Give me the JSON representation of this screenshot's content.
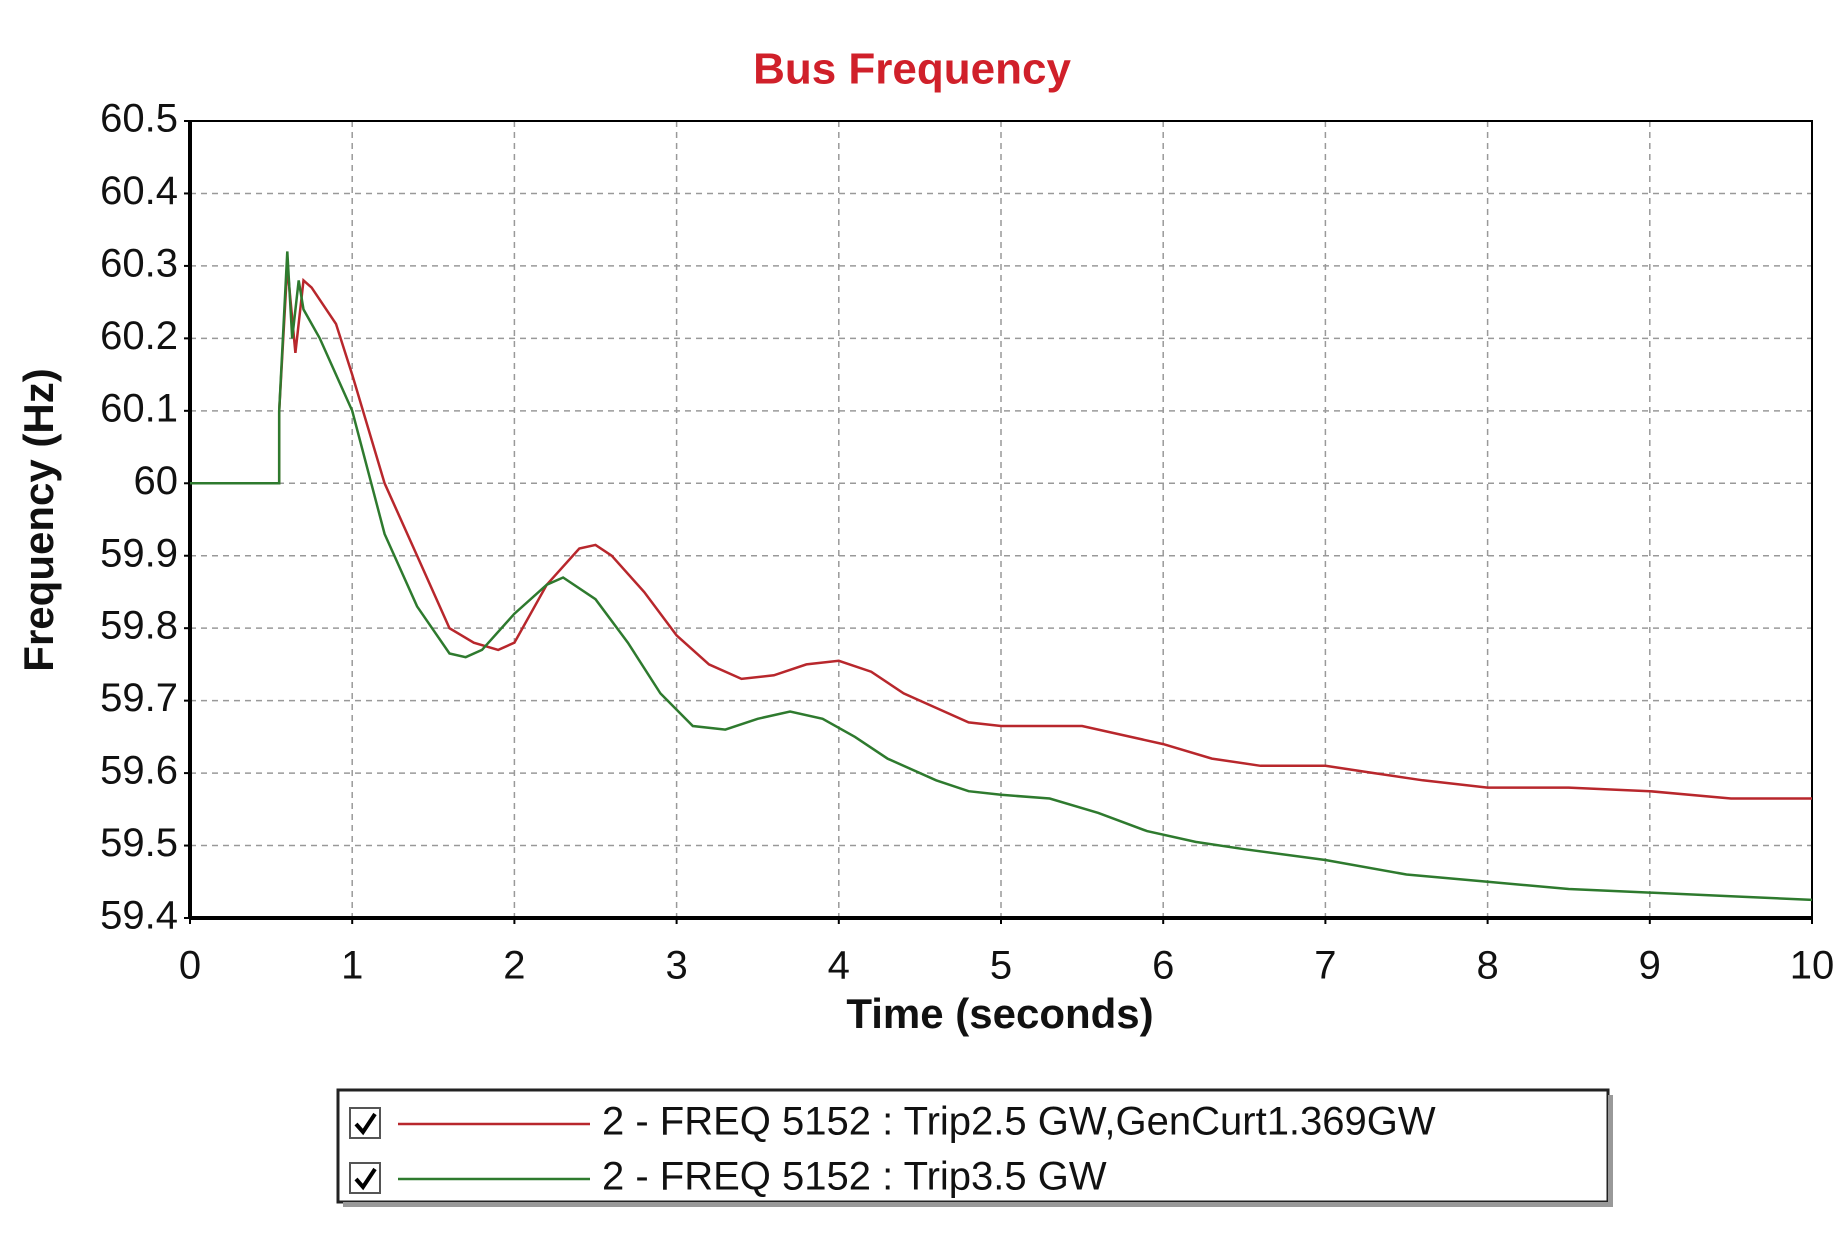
{
  "chart_data": {
    "type": "line",
    "title": "Bus Frequency",
    "x_label": "Time (seconds)",
    "y_label": "Frequency (Hz)",
    "xlim": [
      0,
      10
    ],
    "ylim": [
      59.4,
      60.5
    ],
    "xticks": [
      0,
      1,
      2,
      3,
      4,
      5,
      6,
      7,
      8,
      9,
      10
    ],
    "yticks": [
      59.4,
      59.5,
      59.6,
      59.7,
      59.8,
      59.9,
      60,
      60.1,
      60.2,
      60.3,
      60.4,
      60.5
    ],
    "grid": true,
    "legend": "bottom",
    "series": [
      {
        "name": "2 - FREQ 5152 : Trip2.5 GW,GenCurt1.369GW",
        "color": "#b8272c",
        "x": [
          0,
          0.55,
          0.55,
          0.6,
          0.65,
          0.7,
          0.75,
          0.9,
          1.0,
          1.2,
          1.4,
          1.6,
          1.75,
          1.9,
          2.0,
          2.2,
          2.4,
          2.5,
          2.6,
          2.8,
          3.0,
          3.2,
          3.4,
          3.6,
          3.8,
          4.0,
          4.2,
          4.4,
          4.6,
          4.8,
          5.0,
          5.2,
          5.5,
          5.8,
          6.0,
          6.3,
          6.6,
          7.0,
          7.3,
          7.6,
          8.0,
          8.5,
          9.0,
          9.5,
          10
        ],
        "values": [
          60,
          60,
          60.1,
          60.3,
          60.18,
          60.28,
          60.27,
          60.22,
          60.15,
          60.0,
          59.9,
          59.8,
          59.78,
          59.77,
          59.78,
          59.86,
          59.91,
          59.915,
          59.9,
          59.85,
          59.79,
          59.75,
          59.73,
          59.735,
          59.75,
          59.755,
          59.74,
          59.71,
          59.69,
          59.67,
          59.665,
          59.665,
          59.665,
          59.65,
          59.64,
          59.62,
          59.61,
          59.61,
          59.6,
          59.59,
          59.58,
          59.58,
          59.575,
          59.565,
          59.565
        ]
      },
      {
        "name": "2 - FREQ 5152 : Trip3.5 GW",
        "color": "#2e7a2e",
        "x": [
          0,
          0.55,
          0.55,
          0.6,
          0.63,
          0.67,
          0.7,
          0.8,
          1.0,
          1.2,
          1.4,
          1.6,
          1.7,
          1.8,
          2.0,
          2.2,
          2.3,
          2.5,
          2.7,
          2.9,
          3.1,
          3.3,
          3.5,
          3.7,
          3.9,
          4.1,
          4.3,
          4.6,
          4.8,
          5.0,
          5.3,
          5.6,
          5.9,
          6.2,
          6.5,
          7.0,
          7.5,
          8.0,
          8.5,
          9.0,
          9.5,
          10
        ],
        "values": [
          60,
          60,
          60.1,
          60.32,
          60.2,
          60.28,
          60.24,
          60.2,
          60.1,
          59.93,
          59.83,
          59.765,
          59.76,
          59.77,
          59.82,
          59.86,
          59.87,
          59.84,
          59.78,
          59.71,
          59.665,
          59.66,
          59.675,
          59.685,
          59.675,
          59.65,
          59.62,
          59.59,
          59.575,
          59.57,
          59.565,
          59.545,
          59.52,
          59.505,
          59.495,
          59.48,
          59.46,
          59.45,
          59.44,
          59.435,
          59.43,
          59.425
        ]
      }
    ]
  }
}
